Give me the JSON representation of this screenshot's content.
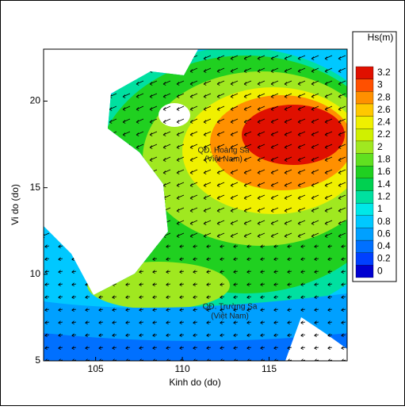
{
  "chart_data": {
    "type": "map",
    "xlabel": "Kinh do (do)",
    "ylabel": "Vi do (do)",
    "xlim": [
      102,
      119.5
    ],
    "ylim": [
      5,
      23
    ],
    "xticks": [
      105,
      110,
      115
    ],
    "yticks": [
      5,
      10,
      15,
      20
    ],
    "colorbar": {
      "title": "Hs(m)",
      "ticks": [
        0,
        0.2,
        0.4,
        0.6,
        0.8,
        1,
        1.2,
        1.4,
        1.6,
        1.8,
        2,
        2.2,
        2.4,
        2.6,
        2.8,
        3,
        3.2
      ],
      "colors": [
        "#0000d0",
        "#0040ff",
        "#0070ff",
        "#00a0ff",
        "#00c8ff",
        "#00e8e8",
        "#00e0a0",
        "#00d050",
        "#20d020",
        "#60e020",
        "#a0e820",
        "#d0f000",
        "#f0f000",
        "#ffc800",
        "#ff9000",
        "#ff5000",
        "#e01000"
      ]
    },
    "annotations": [
      "QĐ. Hoàng Sa",
      "(Việt Nam)",
      "QĐ. Trường Sa",
      "(Việt Nam)"
    ]
  }
}
